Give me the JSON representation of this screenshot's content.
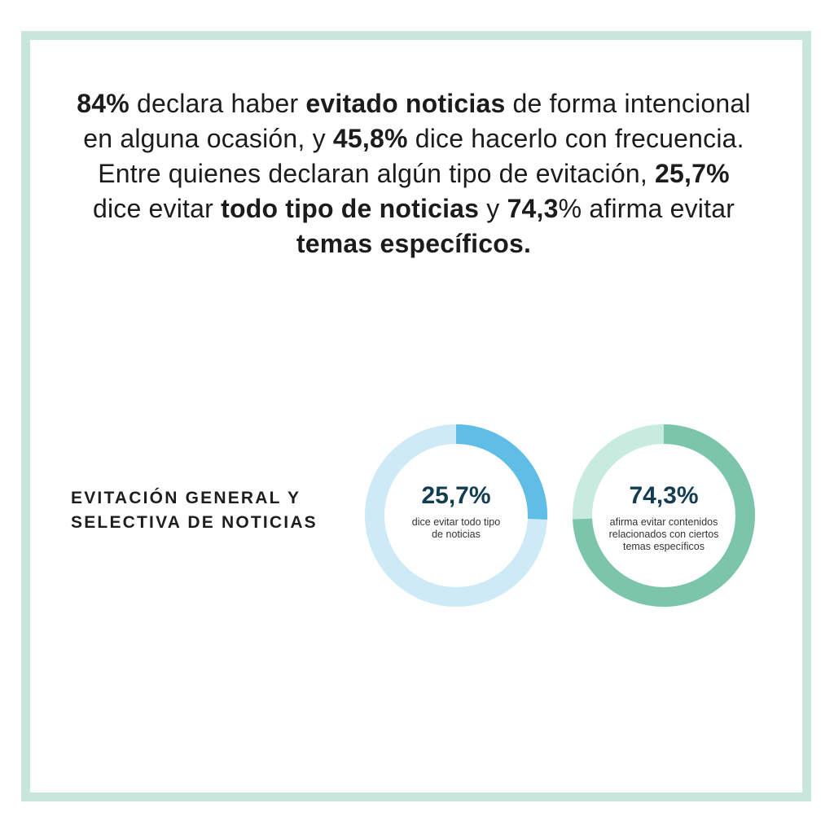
{
  "headline": {
    "segments": [
      {
        "text": "84%",
        "bold": true
      },
      {
        "text": " declara haber ",
        "bold": false
      },
      {
        "text": "evitado noticias",
        "bold": true
      },
      {
        "text": " de forma intencional en alguna ocasión, y ",
        "bold": false
      },
      {
        "text": "45,8%",
        "bold": true
      },
      {
        "text": " dice hacerlo con frecuencia. Entre quienes declaran algún tipo de evitación, ",
        "bold": false
      },
      {
        "text": "25,7%",
        "bold": true
      },
      {
        "text": " dice evitar ",
        "bold": false
      },
      {
        "text": "todo tipo de noticias",
        "bold": true
      },
      {
        "text": " y ",
        "bold": false
      },
      {
        "text": "74,3",
        "bold": true
      },
      {
        "text": "% afirma evitar ",
        "bold": false
      },
      {
        "text": "temas específicos.",
        "bold": true
      }
    ]
  },
  "section_title": {
    "line1": "EVITACIÓN GENERAL Y",
    "line2": "SELECTIVA DE NOTICIAS"
  },
  "chart_data": [
    {
      "type": "pie",
      "values": [
        25.7,
        74.3
      ],
      "value_label": "25,7%",
      "caption_lines": [
        "dice evitar todo tipo",
        "de noticias"
      ],
      "colors": {
        "value": "#5fbde6",
        "rest": "#cdeaf6"
      }
    },
    {
      "type": "pie",
      "values": [
        74.3,
        25.7
      ],
      "value_label": "74,3%",
      "caption_lines": [
        "afirma evitar contenidos",
        "relacionados con ciertos",
        "temas específicos"
      ],
      "colors": {
        "value": "#7cc5ab",
        "rest": "#c7ebde"
      }
    }
  ],
  "colors": {
    "frame": "#c9e6dd",
    "value_text": "#123d52"
  }
}
